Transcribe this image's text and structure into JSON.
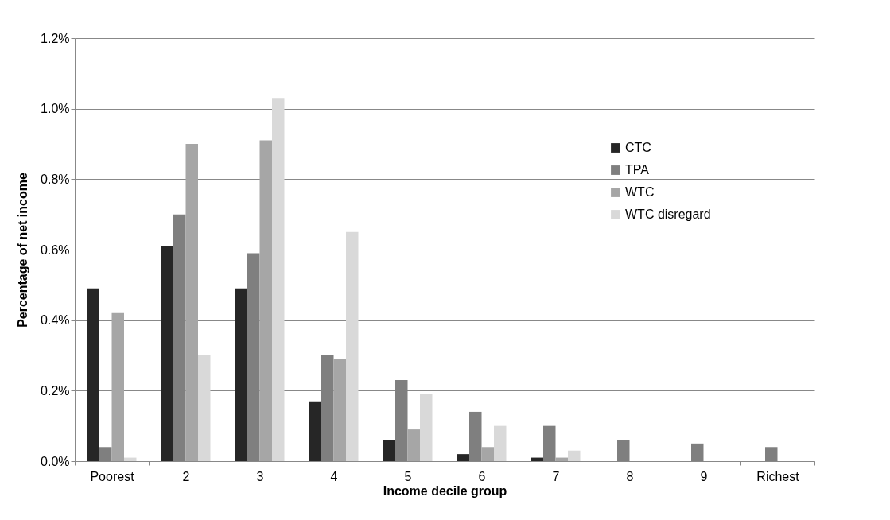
{
  "chart_data": {
    "type": "bar",
    "xlabel": "Income decile group",
    "ylabel": "Percentage of net income",
    "categories": [
      "Poorest",
      "2",
      "3",
      "4",
      "5",
      "6",
      "7",
      "8",
      "9",
      "Richest"
    ],
    "series": [
      {
        "name": "CTC",
        "color": "#262626",
        "values": [
          0.49,
          0.61,
          0.49,
          0.17,
          0.06,
          0.02,
          0.01,
          0,
          0,
          0
        ]
      },
      {
        "name": "TPA",
        "color": "#7f7f7f",
        "values": [
          0.04,
          0.7,
          0.59,
          0.3,
          0.23,
          0.14,
          0.1,
          0.06,
          0.05,
          0.04
        ]
      },
      {
        "name": "WTC",
        "color": "#a6a6a6",
        "values": [
          0.42,
          0.9,
          0.91,
          0.29,
          0.09,
          0.04,
          0.01,
          0,
          0,
          0
        ]
      },
      {
        "name": "WTC disregard",
        "color": "#d9d9d9",
        "values": [
          0.01,
          0.3,
          1.03,
          0.65,
          0.19,
          0.1,
          0.03,
          0,
          0,
          0
        ]
      }
    ],
    "ylim": [
      0,
      1.2
    ],
    "yticks": [
      {
        "value": 0,
        "label": "0.0%"
      },
      {
        "value": 0.2,
        "label": "0.2%"
      },
      {
        "value": 0.4,
        "label": "0.4%"
      },
      {
        "value": 0.6,
        "label": "0.6%"
      },
      {
        "value": 0.8,
        "label": "0.8%"
      },
      {
        "value": 1.0,
        "label": "1.0%"
      },
      {
        "value": 1.2,
        "label": "1.2%"
      }
    ],
    "grid": "y",
    "legend": "top right"
  }
}
